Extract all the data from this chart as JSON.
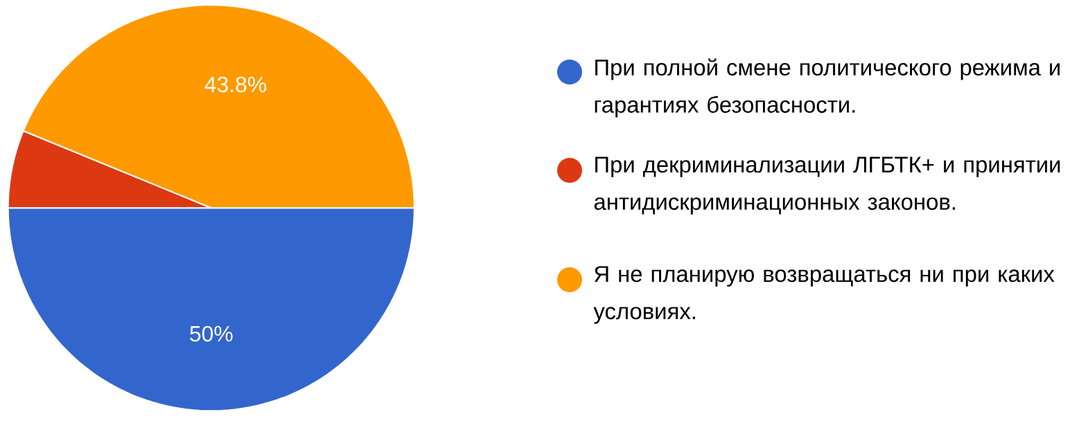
{
  "chart_data": {
    "type": "pie",
    "categories": [
      "При полной смене политического режима и гарантиях безопасности.",
      "При декриминализации ЛГБТК+ и принятии антидискриминационных законов.",
      "Я не планирую возвращаться ни при каких условиях."
    ],
    "values": [
      50,
      6.2,
      43.8
    ],
    "colors": [
      "#3366cc",
      "#dc3912",
      "#ff9900"
    ],
    "value_labels": [
      "50%",
      null,
      "43.8%"
    ],
    "legend": "right"
  }
}
